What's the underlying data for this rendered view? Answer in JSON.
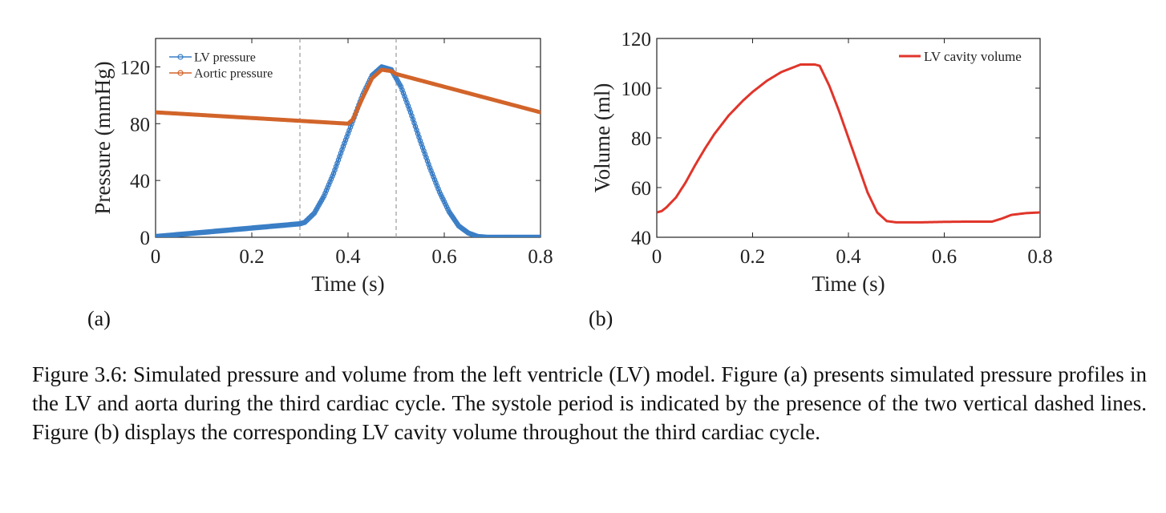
{
  "figure": {
    "label_a": "(a)",
    "label_b": "(b)",
    "caption": "Figure 3.6: Simulated pressure and volume from the left ventricle (LV) model. Figure (a) presents simulated pressure profiles in the LV and aorta during the third cardiac cycle. The systole period is indicated by the presence of the two vertical dashed lines. Figure (b) displays the corresponding LV cavity volume throughout the third cardiac cycle."
  },
  "colors": {
    "lv": "#3a7ec6",
    "aortic": "#d2642a",
    "volume": "#e0352b",
    "dash": "#999999",
    "axis": "#222222"
  },
  "chart_data": [
    {
      "id": "a",
      "type": "line",
      "xlabel": "Time (s)",
      "ylabel": "Pressure (mmHg)",
      "xlim": [
        0,
        0.8
      ],
      "ylim": [
        0,
        140
      ],
      "xticks": [
        0,
        0.2,
        0.4,
        0.6,
        0.8
      ],
      "xtick_labels": [
        "0",
        "0.2",
        "0.4",
        "0.6",
        "0.8"
      ],
      "yticks": [
        0,
        40,
        80,
        120
      ],
      "ytick_labels": [
        "0",
        "40",
        "80",
        "120"
      ],
      "legend_position": "top-left",
      "vlines": [
        0.3,
        0.5
      ],
      "series": [
        {
          "name": "LV pressure",
          "color": "#3a7ec6",
          "x": [
            0,
            0.1,
            0.2,
            0.3,
            0.31,
            0.33,
            0.35,
            0.37,
            0.39,
            0.41,
            0.43,
            0.45,
            0.47,
            0.49,
            0.51,
            0.53,
            0.55,
            0.57,
            0.59,
            0.61,
            0.63,
            0.65,
            0.67,
            0.69,
            0.7,
            0.75,
            0.8
          ],
          "y": [
            0.5,
            3.5,
            6.5,
            9.5,
            10.5,
            17,
            29,
            45,
            64,
            82,
            100,
            114,
            120,
            118,
            106,
            88,
            68,
            49,
            32,
            18,
            8,
            3,
            0.5,
            0,
            0,
            0,
            0
          ]
        },
        {
          "name": "Aortic pressure",
          "color": "#d2642a",
          "x": [
            0,
            0.1,
            0.2,
            0.3,
            0.4,
            0.41,
            0.43,
            0.45,
            0.47,
            0.49,
            0.5,
            0.6,
            0.7,
            0.8
          ],
          "y": [
            88,
            86,
            84,
            82,
            80,
            83,
            98,
            112,
            118,
            117,
            115,
            106,
            97,
            88
          ]
        }
      ]
    },
    {
      "id": "b",
      "type": "line",
      "xlabel": "Time (s)",
      "ylabel": "Volume (ml)",
      "xlim": [
        0,
        0.8
      ],
      "ylim": [
        40,
        120
      ],
      "xticks": [
        0,
        0.2,
        0.4,
        0.6,
        0.8
      ],
      "xtick_labels": [
        "0",
        "0.2",
        "0.4",
        "0.6",
        "0.8"
      ],
      "yticks": [
        40,
        60,
        80,
        100,
        120
      ],
      "ytick_labels": [
        "40",
        "60",
        "80",
        "100",
        "120"
      ],
      "legend_position": "top-right",
      "series": [
        {
          "name": "LV cavity volume",
          "color": "#e0352b",
          "x": [
            0,
            0.01,
            0.02,
            0.04,
            0.06,
            0.08,
            0.1,
            0.12,
            0.15,
            0.18,
            0.2,
            0.23,
            0.26,
            0.28,
            0.3,
            0.33,
            0.34,
            0.36,
            0.38,
            0.4,
            0.42,
            0.44,
            0.46,
            0.48,
            0.5,
            0.55,
            0.6,
            0.65,
            0.7,
            0.72,
            0.74,
            0.77,
            0.8
          ],
          "y": [
            50,
            50.5,
            52,
            56,
            62,
            69,
            75.5,
            81.5,
            89,
            95,
            98.5,
            103,
            106.5,
            108,
            109.5,
            109.5,
            109,
            101,
            91,
            80,
            69,
            58,
            50,
            46.5,
            46,
            46,
            46.2,
            46.3,
            46.3,
            47.5,
            49,
            49.7,
            50
          ]
        }
      ]
    }
  ]
}
